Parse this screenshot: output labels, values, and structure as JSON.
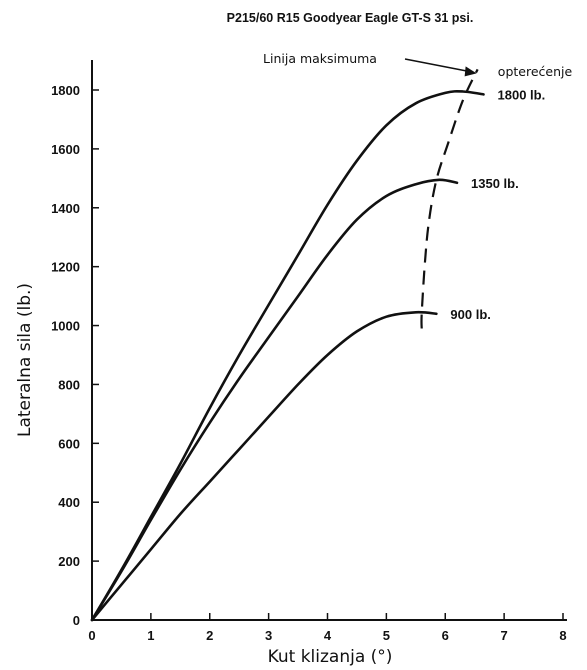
{
  "chart_data": {
    "type": "line",
    "title": "P215/60 R15 Goodyear Eagle GT-S 31 psi.",
    "xlabel": "Kut klizanja (°)",
    "ylabel": "Lateralna sila (lb.)",
    "xlim": [
      0,
      8
    ],
    "ylim": [
      0,
      1900
    ],
    "xticks": [
      0,
      1,
      2,
      3,
      4,
      5,
      6,
      7,
      8
    ],
    "yticks": [
      0,
      200,
      400,
      600,
      800,
      1000,
      1200,
      1400,
      1600,
      1800
    ],
    "grid": false,
    "series": [
      {
        "name": "1800 lb.",
        "points": [
          [
            0,
            0
          ],
          [
            0.5,
            170
          ],
          [
            1,
            350
          ],
          [
            1.5,
            530
          ],
          [
            2,
            720
          ],
          [
            2.5,
            900
          ],
          [
            3,
            1070
          ],
          [
            3.5,
            1240
          ],
          [
            4,
            1410
          ],
          [
            4.5,
            1560
          ],
          [
            5,
            1680
          ],
          [
            5.5,
            1755
          ],
          [
            6,
            1790
          ],
          [
            6.3,
            1795
          ],
          [
            6.65,
            1785
          ]
        ]
      },
      {
        "name": "1350 lb.",
        "points": [
          [
            0,
            0
          ],
          [
            0.5,
            165
          ],
          [
            1,
            340
          ],
          [
            1.5,
            510
          ],
          [
            2,
            670
          ],
          [
            2.5,
            820
          ],
          [
            3,
            960
          ],
          [
            3.5,
            1100
          ],
          [
            4,
            1240
          ],
          [
            4.5,
            1360
          ],
          [
            5,
            1440
          ],
          [
            5.5,
            1480
          ],
          [
            5.9,
            1495
          ],
          [
            6.2,
            1485
          ]
        ]
      },
      {
        "name": "900 lb.",
        "points": [
          [
            0,
            0
          ],
          [
            0.5,
            120
          ],
          [
            1,
            240
          ],
          [
            1.5,
            360
          ],
          [
            2,
            470
          ],
          [
            2.5,
            580
          ],
          [
            3,
            690
          ],
          [
            3.5,
            800
          ],
          [
            4,
            900
          ],
          [
            4.5,
            980
          ],
          [
            5,
            1030
          ],
          [
            5.5,
            1045
          ],
          [
            5.85,
            1040
          ]
        ]
      }
    ],
    "annotations": [
      {
        "text_lines": [
          "Linija maksimuma",
          "opterećenje"
        ],
        "style": "dashed",
        "points": [
          [
            5.6,
            990
          ],
          [
            5.6,
            1040
          ],
          [
            5.65,
            1200
          ],
          [
            5.72,
            1350
          ],
          [
            5.85,
            1495
          ],
          [
            6.05,
            1620
          ],
          [
            6.3,
            1765
          ],
          [
            6.55,
            1870
          ]
        ]
      }
    ]
  }
}
